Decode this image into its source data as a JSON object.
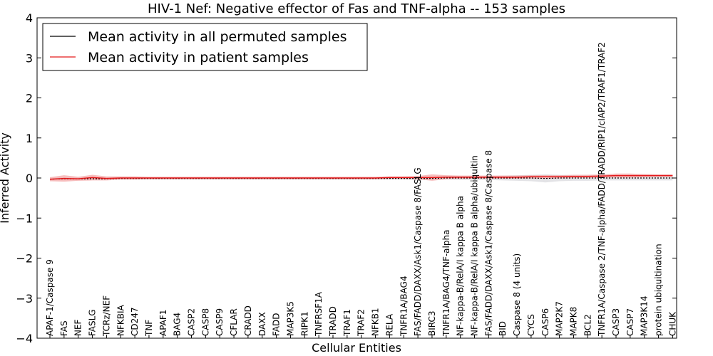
{
  "chart_data": {
    "type": "line",
    "title": "HIV-1 Nef: Negative effector of Fas and TNF-alpha -- 153 samples",
    "xlabel": "Cellular Entities",
    "ylabel": "Inferred Activity",
    "ylim": [
      -4,
      4
    ],
    "yticks": [
      "−4",
      "−3",
      "−2",
      "−1",
      "0",
      "1",
      "2",
      "3",
      "4"
    ],
    "legend_position": "upper-left",
    "categories": [
      "APAF-1/Caspase 9",
      "FAS",
      "NEF",
      "FASLG",
      "TCRz/NEF",
      "NFKBIA",
      "CD247",
      "TNF",
      "APAF1",
      "BAG4",
      "CASP2",
      "CASP8",
      "CASP9",
      "CFLAR",
      "CRADD",
      "DAXX",
      "FADD",
      "MAP3K5",
      "RIPK1",
      "TNFRSF1A",
      "TRADD",
      "TRAF1",
      "TRAF2",
      "NFKB1",
      "RELA",
      "TNFR1A/BAG4",
      "FAS/FADD/DAXX/Ask1/Caspase 8/FASLG",
      "BIRC3",
      "TNFR1A/BAG4/TNF-alpha",
      "NF-kappa-B/RelA/I kappa B alpha",
      "NF-kappa-B/RelA/I kappa B alpha/ubiquitin",
      "FAS/FADD/DAXX/Ask1/Caspase 8/Caspase 8",
      "BID",
      "Caspase 8 (4 units)",
      "CYCS",
      "CASP6",
      "MAP2K7",
      "MAPK8",
      "BCL2",
      "TNFR1A/Caspase 2/TNF-alpha/FADD/TRADD/RIP1/cIAP2/TRAF1/TRAF2",
      "CASP3",
      "CASP7",
      "MAP3K14",
      "protein ubiquitination",
      "CHUK"
    ],
    "series": [
      {
        "name": "Mean activity in all permuted samples",
        "color": "#000000",
        "band_color": "#d9d9de",
        "values": [
          -0.03,
          -0.02,
          -0.02,
          -0.02,
          -0.02,
          -0.01,
          -0.01,
          -0.01,
          -0.01,
          -0.01,
          -0.01,
          -0.01,
          -0.01,
          -0.01,
          -0.01,
          -0.01,
          -0.01,
          -0.01,
          -0.01,
          -0.01,
          -0.01,
          -0.01,
          -0.01,
          -0.01,
          -0.01,
          -0.01,
          -0.01,
          -0.01,
          0.0,
          0.0,
          0.0,
          0.0,
          0.0,
          0.0,
          0.0,
          -0.01,
          0.0,
          0.0,
          0.0,
          0.0,
          0.0,
          0.0,
          0.0,
          0.0,
          0.0
        ],
        "band": [
          0.03,
          0.03,
          0.03,
          0.03,
          0.03,
          0.03,
          0.03,
          0.03,
          0.03,
          0.03,
          0.03,
          0.03,
          0.03,
          0.03,
          0.03,
          0.03,
          0.03,
          0.03,
          0.03,
          0.03,
          0.03,
          0.03,
          0.03,
          0.03,
          0.03,
          0.03,
          0.04,
          0.04,
          0.04,
          0.05,
          0.05,
          0.05,
          0.06,
          0.07,
          0.08,
          0.1,
          0.08,
          0.07,
          0.07,
          0.06,
          0.06,
          0.06,
          0.06,
          0.06,
          0.06
        ]
      },
      {
        "name": "Mean activity in patient samples",
        "color": "#e41a1c",
        "band_color": "#f4a3a3",
        "values": [
          -0.03,
          -0.01,
          -0.02,
          0.01,
          -0.01,
          0.0,
          0.0,
          0.0,
          0.0,
          0.0,
          0.0,
          0.0,
          0.0,
          0.0,
          0.0,
          0.0,
          0.0,
          0.0,
          0.0,
          0.0,
          0.0,
          0.0,
          0.0,
          0.0,
          0.01,
          0.01,
          0.01,
          0.01,
          0.02,
          0.02,
          0.02,
          0.02,
          0.02,
          0.02,
          0.03,
          0.03,
          0.03,
          0.04,
          0.04,
          0.05,
          0.06,
          0.06,
          0.06,
          0.06,
          0.06
        ],
        "band": [
          0.05,
          0.08,
          0.05,
          0.07,
          0.05,
          0.04,
          0.04,
          0.03,
          0.03,
          0.03,
          0.03,
          0.03,
          0.03,
          0.03,
          0.03,
          0.03,
          0.03,
          0.03,
          0.03,
          0.03,
          0.03,
          0.03,
          0.03,
          0.03,
          0.03,
          0.03,
          0.04,
          0.08,
          0.05,
          0.04,
          0.04,
          0.04,
          0.04,
          0.04,
          0.04,
          0.04,
          0.04,
          0.04,
          0.04,
          0.04,
          0.05,
          0.05,
          0.04,
          0.03,
          0.03
        ]
      }
    ]
  }
}
